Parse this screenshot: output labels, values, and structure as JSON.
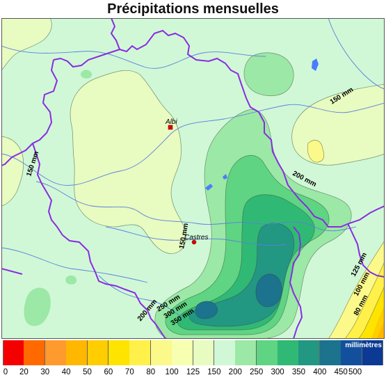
{
  "title": "Précipitations mensuelles",
  "cities": [
    {
      "name": "Albi",
      "label": "Albi"
    },
    {
      "name": "Castres",
      "label": "Castres"
    }
  ],
  "contour_labels": [
    "150 mm",
    "150 mm",
    "150 mm",
    "200 mm",
    "200 mm",
    "250 mm",
    "300 mm",
    "350 mm",
    "125 mm",
    "100 mm",
    "80 mm"
  ],
  "legend": {
    "unit": "millimètres",
    "ticks": [
      "0",
      "20",
      "30",
      "40",
      "50",
      "60",
      "70",
      "80",
      "100",
      "125",
      "150",
      "200",
      "250",
      "300",
      "350",
      "400",
      "450",
      "500"
    ],
    "colors": [
      "#f40000",
      "#ff6a00",
      "#ff9a2e",
      "#ffb700",
      "#ffcd00",
      "#ffe400",
      "#fff14a",
      "#fbf98a",
      "#f7ffb0",
      "#e8fbc0",
      "#d0f8d6",
      "#9ce8a6",
      "#5fd483",
      "#30b974",
      "#229782",
      "#1b738d",
      "#12509e",
      "#0a3a94"
    ]
  },
  "colors": {
    "border": "#8a2be2",
    "river": "#5b7fe0",
    "lake": "#4a7cff",
    "city_marker": "#e00000"
  }
}
